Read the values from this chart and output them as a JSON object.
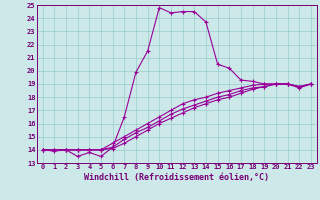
{
  "xlabel": "Windchill (Refroidissement éolien,°C)",
  "ylabel": "",
  "bg_color": "#cce8e8",
  "line_color": "#990099",
  "grid_color": "#99cccc",
  "xlim": [
    -0.5,
    23.5
  ],
  "ylim": [
    13,
    25
  ],
  "xticks": [
    0,
    1,
    2,
    3,
    4,
    5,
    6,
    7,
    8,
    9,
    10,
    11,
    12,
    13,
    14,
    15,
    16,
    17,
    18,
    19,
    20,
    21,
    22,
    23
  ],
  "yticks": [
    13,
    14,
    15,
    16,
    17,
    18,
    19,
    20,
    21,
    22,
    23,
    24,
    25
  ],
  "series1_x": [
    0,
    1,
    2,
    3,
    4,
    5,
    6,
    7,
    8,
    9,
    10,
    11,
    12,
    13,
    14,
    15,
    16,
    17,
    18,
    19,
    20,
    21,
    22,
    23
  ],
  "series1_y": [
    14.0,
    13.9,
    14.0,
    13.5,
    13.8,
    13.5,
    14.2,
    16.5,
    19.9,
    21.5,
    24.8,
    24.4,
    24.5,
    24.5,
    23.7,
    20.5,
    20.2,
    19.3,
    19.2,
    19.0,
    19.0,
    19.0,
    18.7,
    19.0
  ],
  "series2_x": [
    0,
    1,
    2,
    3,
    4,
    5,
    6,
    7,
    8,
    9,
    10,
    11,
    12,
    13,
    14,
    15,
    16,
    17,
    18,
    19,
    20,
    21,
    22,
    23
  ],
  "series2_y": [
    14.0,
    14.0,
    14.0,
    14.0,
    14.0,
    14.0,
    14.5,
    15.0,
    15.5,
    16.0,
    16.5,
    17.0,
    17.5,
    17.8,
    18.0,
    18.3,
    18.5,
    18.7,
    18.9,
    19.0,
    19.0,
    19.0,
    18.8,
    19.0
  ],
  "series3_x": [
    0,
    1,
    2,
    3,
    4,
    5,
    6,
    7,
    8,
    9,
    10,
    11,
    12,
    13,
    14,
    15,
    16,
    17,
    18,
    19,
    20,
    21,
    22,
    23
  ],
  "series3_y": [
    14.0,
    14.0,
    14.0,
    14.0,
    14.0,
    14.0,
    14.2,
    14.8,
    15.3,
    15.7,
    16.2,
    16.7,
    17.1,
    17.4,
    17.7,
    18.0,
    18.2,
    18.5,
    18.7,
    18.8,
    19.0,
    19.0,
    18.8,
    19.0
  ],
  "series4_x": [
    0,
    1,
    2,
    3,
    4,
    5,
    6,
    7,
    8,
    9,
    10,
    11,
    12,
    13,
    14,
    15,
    16,
    17,
    18,
    19,
    20,
    21,
    22,
    23
  ],
  "series4_y": [
    14.0,
    14.0,
    14.0,
    14.0,
    14.0,
    14.0,
    14.1,
    14.5,
    15.0,
    15.5,
    16.0,
    16.4,
    16.8,
    17.2,
    17.5,
    17.8,
    18.0,
    18.3,
    18.6,
    18.8,
    19.0,
    19.0,
    18.8,
    19.0
  ]
}
